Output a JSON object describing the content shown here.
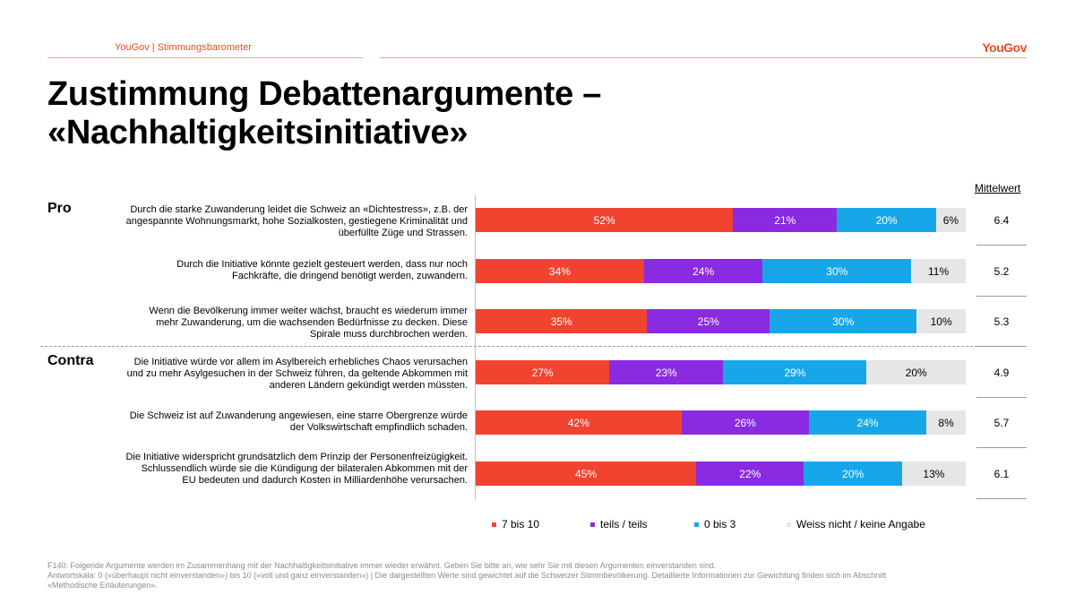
{
  "header": {
    "source_label": "YouGov | Stimmungsbarometer",
    "brand": "YouGov"
  },
  "title": {
    "line1": "Zustimmung Debattenargumente –",
    "line2": "«Nachhaltigkeitsinitiative»"
  },
  "groups": {
    "pro": "Pro",
    "contra": "Contra"
  },
  "mean_header": "Mittelwert",
  "colors": {
    "agree": "#f04431",
    "partial": "#8a2be2",
    "disagree": "#17a7e8",
    "unknown": "#e6e6e6",
    "brand": "#f04a24"
  },
  "chart_data": {
    "type": "bar",
    "orientation": "horizontal",
    "stacked": true,
    "xlim": [
      0,
      100
    ],
    "unit": "%",
    "categories": [
      "Durch die starke Zuwanderung leidet die Schweiz an «Dichtestress», z.B. der angespannte Wohnungsmarkt, hohe Sozialkosten, gestiegene Kriminalität und überfüllte Züge und Strassen.",
      "Durch die Initiative könnte gezielt gesteuert werden, dass nur noch Fachkräfte, die dringend benötigt werden, zuwandern.",
      "Wenn die Bevölkerung immer weiter wächst, braucht es wiederum immer mehr Zuwanderung, um die wachsenden Bedürfnisse zu decken. Diese Spirale muss durchbrochen werden.",
      "Die Initiative würde vor allem im Asylbereich erhebliches Chaos verursachen und zu mehr Asylgesuchen in der Schweiz führen, da geltende Abkommen mit anderen Ländern gekündigt werden müssten.",
      "Die Schweiz ist auf Zuwanderung angewiesen, eine starre Obergrenze würde der Volkswirtschaft empfindlich schaden.",
      "Die Initiative widerspricht grundsätzlich dem Prinzip der Personenfreizügigkeit. Schlussendlich würde sie die Kündigung der bilateralen Abkommen mit der EU bedeuten und dadurch Kosten in Milliardenhöhe verursachen."
    ],
    "series": [
      {
        "name": "7 bis 10",
        "values": [
          52,
          34,
          35,
          27,
          42,
          45
        ]
      },
      {
        "name": "teils / teils",
        "values": [
          21,
          24,
          25,
          23,
          26,
          22
        ]
      },
      {
        "name": "0 bis 3",
        "values": [
          20,
          30,
          30,
          29,
          24,
          20
        ]
      },
      {
        "name": "Weiss nicht / keine Angabe",
        "values": [
          6,
          11,
          10,
          20,
          8,
          13
        ]
      }
    ],
    "means": [
      "6.4",
      "5.2",
      "5.3",
      "4.9",
      "5.7",
      "6.1"
    ],
    "legend_position": "bottom"
  },
  "footnote": {
    "line1": "F140: Folgende Argumente werden im Zusammenhang mit der Nachhaltigkeitsinitiative immer wieder erwähnt. Geben Sie bitte an, wie sehr Sie mit diesen Argumenten einverstanden sind.",
    "line2": "Antwortskala: 0 («überhaupt nicht einverstanden») bis 10 («voll und ganz einverstanden») | Die dargestellten Werte sind gewichtet auf die Schweizer Stimmbevölkerung. Detaillierte Informationen zur Gewichtung finden sich im Abschnitt",
    "line3": "«Methodische Erläuterungen»."
  }
}
